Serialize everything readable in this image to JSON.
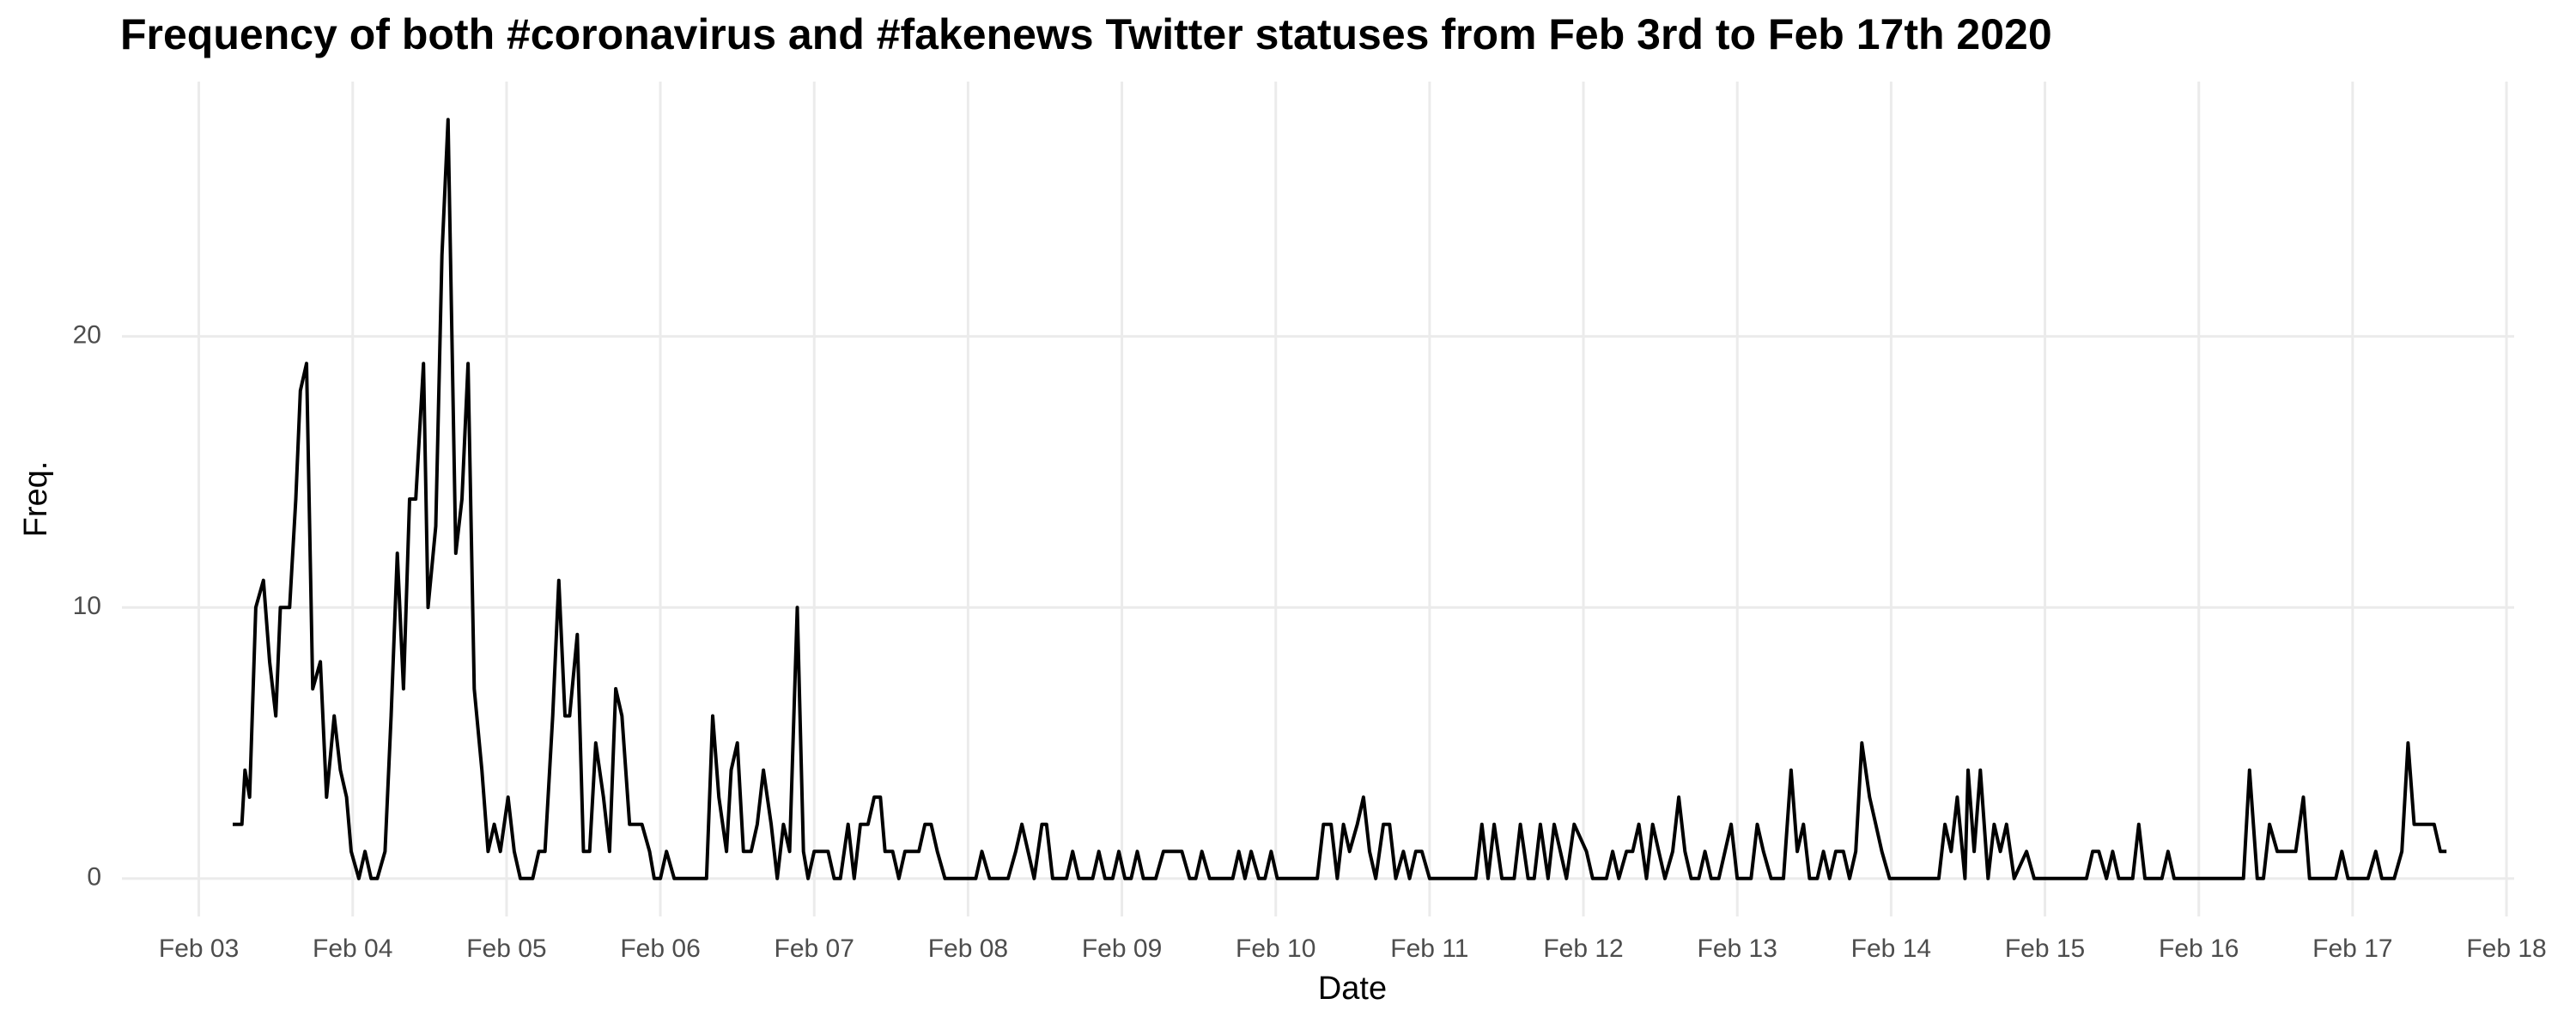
{
  "chart_data": {
    "type": "line",
    "title": "Frequency of both #coronavirus and #fakenews Twitter statuses from Feb 3rd to Feb 17th 2020",
    "x_label": "Date",
    "y_label": "Freq.",
    "color": "#000000",
    "grid": true,
    "xlim": [
      2.5,
      18.05
    ],
    "ylim": [
      -1.4,
      29.4
    ],
    "xticks": [
      {
        "value": 3,
        "label": "Feb 03"
      },
      {
        "value": 4,
        "label": "Feb 04"
      },
      {
        "value": 5,
        "label": "Feb 05"
      },
      {
        "value": 6,
        "label": "Feb 06"
      },
      {
        "value": 7,
        "label": "Feb 07"
      },
      {
        "value": 8,
        "label": "Feb 08"
      },
      {
        "value": 9,
        "label": "Feb 09"
      },
      {
        "value": 10,
        "label": "Feb 10"
      },
      {
        "value": 11,
        "label": "Feb 11"
      },
      {
        "value": 12,
        "label": "Feb 12"
      },
      {
        "value": 13,
        "label": "Feb 13"
      },
      {
        "value": 14,
        "label": "Feb 14"
      },
      {
        "value": 15,
        "label": "Feb 15"
      },
      {
        "value": 16,
        "label": "Feb 16"
      },
      {
        "value": 17,
        "label": "Feb 17"
      },
      {
        "value": 18,
        "label": "Feb 18"
      }
    ],
    "yticks": [
      0,
      10,
      20
    ],
    "x": [
      3.22,
      3.28,
      3.3,
      3.33,
      3.37,
      3.42,
      3.46,
      3.5,
      3.53,
      3.59,
      3.63,
      3.66,
      3.7,
      3.74,
      3.79,
      3.83,
      3.88,
      3.92,
      3.96,
      3.99,
      4.04,
      4.08,
      4.12,
      4.16,
      4.21,
      4.25,
      4.29,
      4.33,
      4.37,
      4.41,
      4.46,
      4.49,
      4.54,
      4.58,
      4.62,
      4.67,
      4.71,
      4.75,
      4.79,
      4.84,
      4.88,
      4.92,
      4.96,
      5.01,
      5.05,
      5.09,
      5.17,
      5.21,
      5.25,
      5.3,
      5.34,
      5.38,
      5.41,
      5.46,
      5.5,
      5.54,
      5.58,
      5.63,
      5.67,
      5.71,
      5.75,
      5.8,
      5.84,
      5.88,
      5.93,
      5.96,
      6.0,
      6.04,
      6.09,
      6.3,
      6.34,
      6.38,
      6.43,
      6.46,
      6.5,
      6.54,
      6.59,
      6.63,
      6.67,
      6.72,
      6.76,
      6.8,
      6.84,
      6.89,
      6.93,
      6.96,
      7.0,
      7.09,
      7.13,
      7.17,
      7.22,
      7.26,
      7.3,
      7.35,
      7.39,
      7.43,
      7.46,
      7.51,
      7.55,
      7.59,
      7.68,
      7.72,
      7.76,
      7.8,
      7.85,
      8.05,
      8.09,
      8.14,
      8.26,
      8.31,
      8.35,
      8.39,
      8.43,
      8.48,
      8.51,
      8.55,
      8.64,
      8.68,
      8.72,
      8.81,
      8.85,
      8.89,
      8.94,
      8.98,
      9.02,
      9.06,
      9.1,
      9.14,
      9.22,
      9.27,
      9.39,
      9.44,
      9.48,
      9.52,
      9.57,
      9.72,
      9.76,
      9.8,
      9.84,
      9.89,
      9.93,
      9.97,
      10.01,
      10.27,
      10.31,
      10.36,
      10.4,
      10.44,
      10.48,
      10.53,
      10.57,
      10.61,
      10.65,
      10.7,
      10.74,
      10.78,
      10.83,
      10.87,
      10.91,
      10.95,
      11.0,
      11.3,
      11.34,
      11.38,
      11.42,
      11.47,
      11.55,
      11.59,
      11.64,
      11.68,
      11.72,
      11.77,
      11.81,
      11.85,
      11.89,
      11.94,
      12.02,
      12.06,
      12.15,
      12.19,
      12.23,
      12.28,
      12.32,
      12.36,
      12.41,
      12.45,
      12.49,
      12.53,
      12.58,
      12.62,
      12.66,
      12.7,
      12.75,
      12.79,
      12.83,
      12.88,
      12.92,
      12.96,
      13.0,
      13.09,
      13.13,
      13.17,
      13.22,
      13.3,
      13.35,
      13.39,
      13.43,
      13.47,
      13.52,
      13.56,
      13.6,
      13.64,
      13.69,
      13.73,
      13.77,
      13.81,
      13.86,
      13.9,
      13.94,
      13.99,
      14.31,
      14.35,
      14.39,
      14.43,
      14.48,
      14.5,
      14.54,
      14.58,
      14.63,
      14.67,
      14.71,
      14.75,
      14.8,
      14.88,
      14.93,
      15.27,
      15.31,
      15.35,
      15.4,
      15.44,
      15.48,
      15.57,
      15.61,
      15.65,
      15.76,
      15.8,
      15.84,
      16.29,
      16.33,
      16.38,
      16.42,
      16.46,
      16.51,
      16.63,
      16.68,
      16.72,
      16.89,
      16.93,
      16.97,
      17.1,
      17.15,
      17.19,
      17.27,
      17.32,
      17.36,
      17.4,
      17.53,
      17.57,
      17.61
    ],
    "values": [
      2,
      2,
      4,
      3,
      10,
      11,
      8,
      6,
      10,
      10,
      14,
      18,
      19,
      7,
      8,
      3,
      6,
      4,
      3,
      1,
      0,
      1,
      0,
      0,
      1,
      6,
      12,
      7,
      14,
      14,
      19,
      10,
      13,
      23,
      28,
      12,
      14,
      19,
      7,
      4,
      1,
      2,
      1,
      3,
      1,
      0,
      0,
      1,
      1,
      6,
      11,
      6,
      6,
      9,
      1,
      1,
      5,
      3,
      1,
      7,
      6,
      2,
      2,
      2,
      1,
      0,
      0,
      1,
      0,
      0,
      6,
      3,
      1,
      4,
      5,
      1,
      1,
      2,
      4,
      2,
      0,
      2,
      1,
      10,
      1,
      0,
      1,
      1,
      0,
      0,
      2,
      0,
      2,
      2,
      3,
      3,
      1,
      1,
      0,
      1,
      1,
      2,
      2,
      1,
      0,
      0,
      1,
      0,
      0,
      1,
      2,
      1,
      0,
      2,
      2,
      0,
      0,
      1,
      0,
      0,
      1,
      0,
      0,
      1,
      0,
      0,
      1,
      0,
      0,
      1,
      1,
      0,
      0,
      1,
      0,
      0,
      1,
      0,
      1,
      0,
      0,
      1,
      0,
      0,
      2,
      2,
      0,
      2,
      1,
      2,
      3,
      1,
      0,
      2,
      2,
      0,
      1,
      0,
      1,
      1,
      0,
      0,
      2,
      0,
      2,
      0,
      0,
      2,
      0,
      0,
      2,
      0,
      2,
      1,
      0,
      2,
      1,
      0,
      0,
      1,
      0,
      1,
      1,
      2,
      0,
      2,
      1,
      0,
      1,
      3,
      1,
      0,
      0,
      1,
      0,
      0,
      1,
      2,
      0,
      0,
      2,
      1,
      0,
      0,
      4,
      1,
      2,
      0,
      0,
      1,
      0,
      1,
      1,
      0,
      1,
      5,
      3,
      2,
      1,
      0,
      0,
      2,
      1,
      3,
      0,
      4,
      1,
      4,
      0,
      2,
      1,
      2,
      0,
      1,
      0,
      0,
      1,
      1,
      0,
      1,
      0,
      0,
      2,
      0,
      0,
      1,
      0,
      0,
      4,
      0,
      0,
      2,
      1,
      1,
      3,
      0,
      0,
      1,
      0,
      0,
      1,
      0,
      0,
      1,
      5,
      2,
      2,
      1,
      1
    ]
  }
}
